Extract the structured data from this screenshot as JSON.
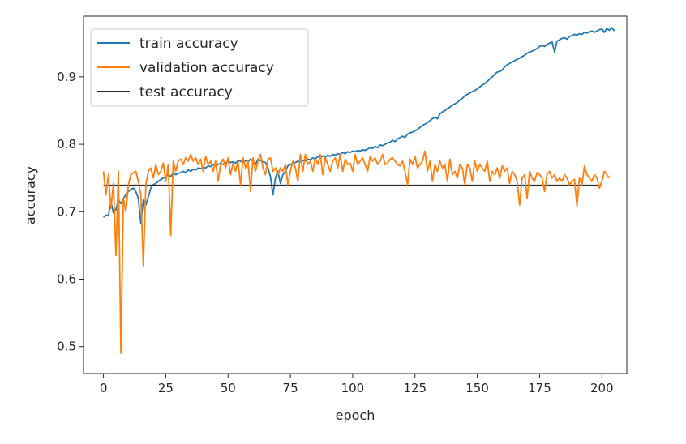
{
  "chart_data": {
    "type": "line",
    "title": "",
    "xlabel": "epoch",
    "ylabel": "accuracy",
    "xlim": [
      -8,
      210
    ],
    "ylim": [
      0.46,
      0.99
    ],
    "xticks": [
      0,
      25,
      50,
      75,
      100,
      125,
      150,
      175,
      200
    ],
    "yticks": [
      0.5,
      0.6,
      0.7,
      0.8,
      0.9
    ],
    "ytick_labels": [
      "0.5",
      "0.6",
      "0.7",
      "0.8",
      "0.9"
    ],
    "grid": false,
    "legend_position": "top-left",
    "x": "0..199 (epoch index)",
    "series": [
      {
        "name": "train accuracy",
        "color": "#1f77b4",
        "style": "line",
        "values": [
          0.692,
          0.695,
          0.694,
          0.715,
          0.698,
          0.703,
          0.718,
          0.712,
          0.72,
          0.725,
          0.73,
          0.733,
          0.735,
          0.73,
          0.72,
          0.683,
          0.718,
          0.71,
          0.722,
          0.735,
          0.74,
          0.742,
          0.745,
          0.748,
          0.75,
          0.752,
          0.755,
          0.752,
          0.758,
          0.755,
          0.757,
          0.758,
          0.76,
          0.758,
          0.762,
          0.76,
          0.763,
          0.762,
          0.765,
          0.764,
          0.766,
          0.765,
          0.768,
          0.767,
          0.77,
          0.768,
          0.77,
          0.772,
          0.77,
          0.772,
          0.775,
          0.773,
          0.774,
          0.772,
          0.776,
          0.775,
          0.773,
          0.776,
          0.774,
          0.778,
          0.775,
          0.77,
          0.778,
          0.776,
          0.774,
          0.773,
          0.765,
          0.752,
          0.725,
          0.75,
          0.76,
          0.742,
          0.755,
          0.76,
          0.768,
          0.77,
          0.772,
          0.773,
          0.775,
          0.774,
          0.776,
          0.775,
          0.778,
          0.777,
          0.78,
          0.778,
          0.782,
          0.78,
          0.783,
          0.781,
          0.784,
          0.782,
          0.785,
          0.784,
          0.786,
          0.785,
          0.788,
          0.786,
          0.789,
          0.788,
          0.79,
          0.789,
          0.791,
          0.79,
          0.792,
          0.791,
          0.793,
          0.795,
          0.794,
          0.797,
          0.795,
          0.799,
          0.798,
          0.8,
          0.802,
          0.803,
          0.806,
          0.804,
          0.808,
          0.81,
          0.812,
          0.81,
          0.815,
          0.817,
          0.818,
          0.82,
          0.822,
          0.825,
          0.828,
          0.83,
          0.832,
          0.835,
          0.838,
          0.84,
          0.838,
          0.845,
          0.848,
          0.85,
          0.853,
          0.855,
          0.858,
          0.86,
          0.862,
          0.866,
          0.868,
          0.872,
          0.874,
          0.876,
          0.878,
          0.88,
          0.882,
          0.885,
          0.888,
          0.89,
          0.893,
          0.897,
          0.9,
          0.904,
          0.907,
          0.908,
          0.91,
          0.915,
          0.918,
          0.92,
          0.922,
          0.924,
          0.926,
          0.928,
          0.93,
          0.932,
          0.935,
          0.937,
          0.938,
          0.94,
          0.942,
          0.945,
          0.947,
          0.945,
          0.948,
          0.95,
          0.952,
          0.937,
          0.953,
          0.955,
          0.957,
          0.958,
          0.956,
          0.96,
          0.961,
          0.963,
          0.962,
          0.964,
          0.963,
          0.966,
          0.965,
          0.967,
          0.968,
          0.966,
          0.968,
          0.97,
          0.971,
          0.966,
          0.972,
          0.969,
          0.973,
          0.968
        ]
      },
      {
        "name": "validation accuracy",
        "color": "#ff7f0e",
        "style": "line",
        "values": [
          0.76,
          0.725,
          0.755,
          0.705,
          0.742,
          0.635,
          0.76,
          0.49,
          0.72,
          0.7,
          0.74,
          0.755,
          0.758,
          0.76,
          0.745,
          0.725,
          0.62,
          0.74,
          0.76,
          0.765,
          0.75,
          0.77,
          0.755,
          0.76,
          0.772,
          0.745,
          0.77,
          0.665,
          0.775,
          0.76,
          0.775,
          0.778,
          0.77,
          0.78,
          0.775,
          0.785,
          0.775,
          0.78,
          0.77,
          0.778,
          0.76,
          0.782,
          0.77,
          0.775,
          0.76,
          0.775,
          0.745,
          0.77,
          0.778,
          0.765,
          0.78,
          0.755,
          0.772,
          0.76,
          0.775,
          0.74,
          0.78,
          0.765,
          0.775,
          0.73,
          0.78,
          0.76,
          0.775,
          0.785,
          0.765,
          0.755,
          0.778,
          0.78,
          0.76,
          0.765,
          0.755,
          0.765,
          0.76,
          0.77,
          0.74,
          0.76,
          0.775,
          0.765,
          0.745,
          0.785,
          0.76,
          0.785,
          0.77,
          0.775,
          0.76,
          0.78,
          0.77,
          0.785,
          0.755,
          0.78,
          0.77,
          0.76,
          0.775,
          0.78,
          0.765,
          0.785,
          0.76,
          0.778,
          0.77,
          0.772,
          0.76,
          0.785,
          0.77,
          0.775,
          0.78,
          0.77,
          0.76,
          0.782,
          0.775,
          0.78,
          0.77,
          0.775,
          0.785,
          0.77,
          0.772,
          0.778,
          0.78,
          0.775,
          0.77,
          0.768,
          0.775,
          0.76,
          0.74,
          0.778,
          0.77,
          0.782,
          0.765,
          0.77,
          0.775,
          0.79,
          0.76,
          0.775,
          0.745,
          0.77,
          0.76,
          0.775,
          0.765,
          0.77,
          0.745,
          0.778,
          0.755,
          0.76,
          0.75,
          0.77,
          0.765,
          0.74,
          0.77,
          0.765,
          0.745,
          0.775,
          0.76,
          0.77,
          0.765,
          0.76,
          0.775,
          0.745,
          0.76,
          0.755,
          0.765,
          0.75,
          0.768,
          0.76,
          0.765,
          0.742,
          0.76,
          0.755,
          0.745,
          0.71,
          0.75,
          0.755,
          0.72,
          0.76,
          0.75,
          0.745,
          0.758,
          0.755,
          0.75,
          0.73,
          0.755,
          0.76,
          0.75,
          0.755,
          0.745,
          0.75,
          0.745,
          0.755,
          0.75,
          0.74,
          0.745,
          0.748,
          0.708,
          0.75,
          0.74,
          0.768,
          0.755,
          0.75,
          0.745,
          0.755,
          0.75,
          0.735,
          0.745,
          0.76,
          0.755,
          0.75
        ]
      },
      {
        "name": "test accuracy",
        "color": "#262626",
        "style": "hline",
        "value": 0.739,
        "x_range": [
          0,
          199
        ]
      }
    ]
  }
}
